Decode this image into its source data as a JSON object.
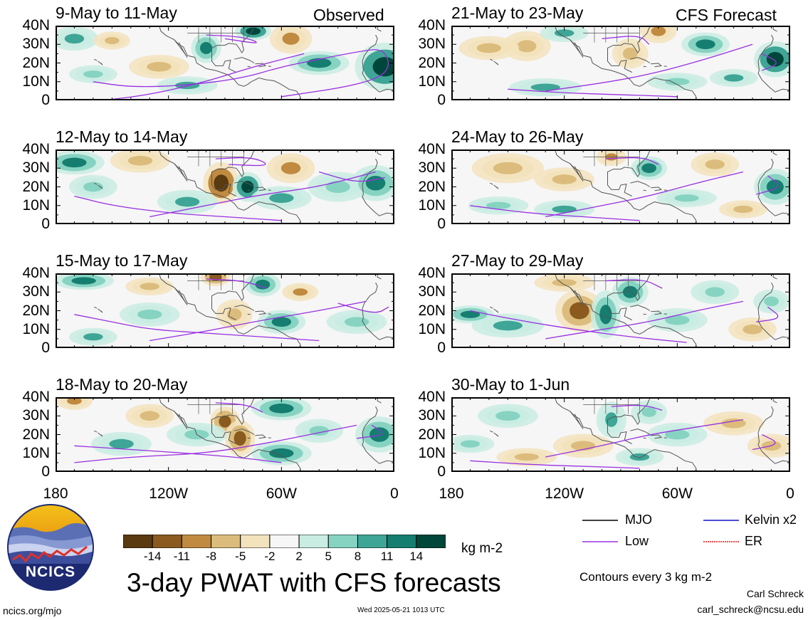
{
  "headers": {
    "observed": "Observed",
    "forecast": "CFS Forecast"
  },
  "panels": [
    {
      "title": "9-May to 11-May",
      "col": 0,
      "row": 0
    },
    {
      "title": "12-May to 14-May",
      "col": 0,
      "row": 1
    },
    {
      "title": "15-May to 17-May",
      "col": 0,
      "row": 2
    },
    {
      "title": "18-May to 20-May",
      "col": 0,
      "row": 3
    },
    {
      "title": "21-May to 23-May",
      "col": 1,
      "row": 0
    },
    {
      "title": "24-May to 26-May",
      "col": 1,
      "row": 1
    },
    {
      "title": "27-May to 29-May",
      "col": 1,
      "row": 2
    },
    {
      "title": "30-May to 1-Jun",
      "col": 1,
      "row": 3
    }
  ],
  "lat_ticks": [
    "40N",
    "30N",
    "20N",
    "10N",
    "0"
  ],
  "lon_ticks": [
    "180",
    "120W",
    "60W",
    "0"
  ],
  "colorbar": {
    "colors": [
      "#5a3a10",
      "#8a5a1e",
      "#c08a40",
      "#dcbc7c",
      "#f3e3bd",
      "#f6f6f6",
      "#c9ece3",
      "#86d3c2",
      "#3fa596",
      "#157e70",
      "#00463a"
    ],
    "labels": [
      "-14",
      "-11",
      "-8",
      "-5",
      "-2",
      "2",
      "5",
      "8",
      "11",
      "14"
    ],
    "unit": "kg m-2"
  },
  "legend": {
    "items": [
      {
        "label": "MJO",
        "color": "#000000"
      },
      {
        "label": "Kelvin x2",
        "color": "#1010c8"
      },
      {
        "label": "Low",
        "color": "#9a30e0"
      },
      {
        "label": "ER",
        "color": "#e01010"
      }
    ],
    "contours_note": "Contours every 3 kg m-2"
  },
  "main_title": "3-day PWAT with CFS forecasts",
  "logo_text": "NCICS",
  "footer": {
    "url": "ncics.org/mjo",
    "timestamp": "Wed 2025-05-21 1013 UTC",
    "author": "Carl Schreck",
    "email": "carl_schreck@ncsu.edu"
  }
}
